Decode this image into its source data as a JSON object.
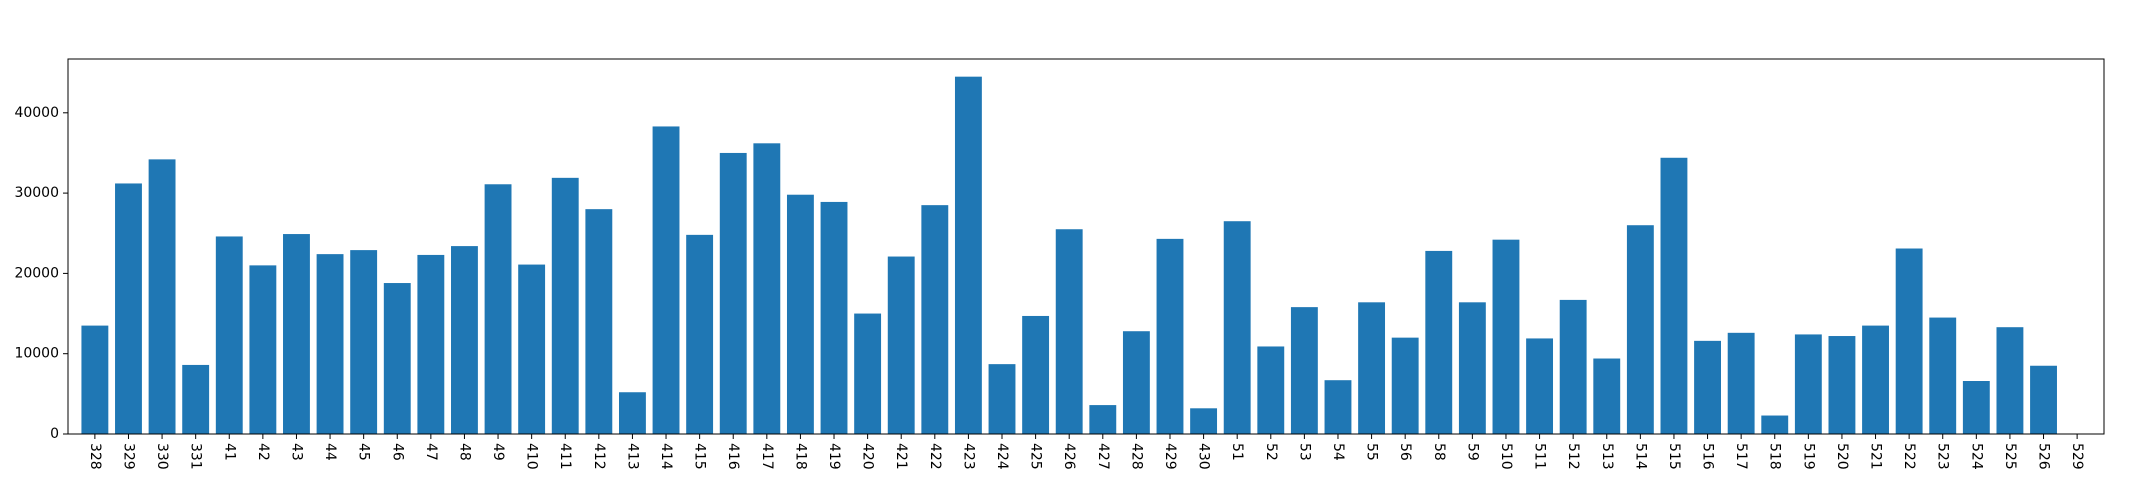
{
  "chart_data": {
    "type": "bar",
    "title": "",
    "xlabel": "",
    "ylabel": "",
    "categories": [
      "328",
      "329",
      "330",
      "331",
      "41",
      "42",
      "43",
      "44",
      "45",
      "46",
      "47",
      "48",
      "49",
      "410",
      "411",
      "412",
      "413",
      "414",
      "415",
      "416",
      "417",
      "418",
      "419",
      "420",
      "421",
      "422",
      "423",
      "424",
      "425",
      "426",
      "427",
      "428",
      "429",
      "430",
      "51",
      "52",
      "53",
      "54",
      "55",
      "56",
      "58",
      "59",
      "510",
      "511",
      "512",
      "513",
      "514",
      "515",
      "516",
      "517",
      "518",
      "519",
      "520",
      "521",
      "522",
      "523",
      "524",
      "525",
      "526",
      "529"
    ],
    "values": [
      13500,
      31200,
      34200,
      8600,
      24600,
      21000,
      24900,
      22400,
      22900,
      18800,
      22300,
      23400,
      31100,
      21100,
      31900,
      28000,
      5200,
      38300,
      24800,
      35000,
      36200,
      29800,
      28900,
      15000,
      22100,
      28500,
      44500,
      8700,
      14700,
      25500,
      3600,
      12800,
      24300,
      3200,
      26500,
      10900,
      15800,
      6700,
      16400,
      12000,
      22800,
      16400,
      24200,
      11900,
      16700,
      9400,
      26000,
      34400,
      11600,
      12600,
      2300,
      12400,
      12200,
      13500,
      23100,
      14500,
      6600,
      13300,
      8500,
      0
    ],
    "ylim": [
      0,
      46700
    ],
    "yticks": [
      0,
      10000,
      20000,
      30000,
      40000
    ],
    "bar_color": "#1f77b4",
    "grid": false,
    "legend": "none"
  }
}
